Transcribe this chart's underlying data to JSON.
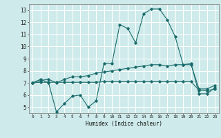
{
  "title": "",
  "xlabel": "Humidex (Indice chaleur)",
  "ylabel": "",
  "background_color": "#ceeaea",
  "grid_color": "#ffffff",
  "line_color": "#1a6b6b",
  "xlim": [
    -0.5,
    23.5
  ],
  "ylim": [
    4.5,
    13.5
  ],
  "xticks": [
    0,
    1,
    2,
    3,
    4,
    5,
    6,
    7,
    8,
    9,
    10,
    11,
    12,
    13,
    14,
    15,
    16,
    17,
    18,
    19,
    20,
    21,
    22,
    23
  ],
  "yticks": [
    5,
    6,
    7,
    8,
    9,
    10,
    11,
    12,
    13
  ],
  "series": [
    [
      7.0,
      7.3,
      7.0,
      4.6,
      5.3,
      5.9,
      6.0,
      5.0,
      5.5,
      8.6,
      8.6,
      11.8,
      11.5,
      10.3,
      12.7,
      13.1,
      13.1,
      12.2,
      10.8,
      8.5,
      8.6,
      6.1,
      6.1,
      6.6
    ],
    [
      7.0,
      7.2,
      7.3,
      7.0,
      7.3,
      7.5,
      7.5,
      7.6,
      7.8,
      7.9,
      8.0,
      8.1,
      8.2,
      8.3,
      8.4,
      8.5,
      8.5,
      8.4,
      8.5,
      8.5,
      8.5,
      6.5,
      6.5,
      6.8
    ],
    [
      7.0,
      7.05,
      7.05,
      7.05,
      7.05,
      7.05,
      7.05,
      7.05,
      7.05,
      7.1,
      7.1,
      7.1,
      7.1,
      7.1,
      7.1,
      7.1,
      7.1,
      7.1,
      7.1,
      7.1,
      7.1,
      6.4,
      6.35,
      6.5
    ]
  ]
}
